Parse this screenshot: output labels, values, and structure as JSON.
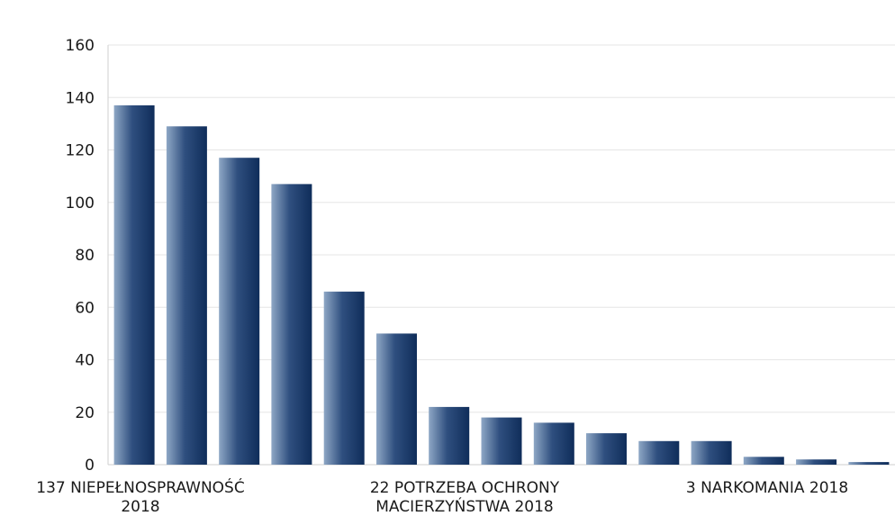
{
  "chart_data": {
    "type": "bar",
    "categories": [
      "137 NIEPEŁNOSPRAWNOŚĆ 2018",
      "",
      "",
      "",
      "",
      "",
      "22 POTRZEBA OCHRONY MACIERZYŃSTWA 2018",
      "",
      "",
      "",
      "",
      "",
      "",
      "3 NARKOMANIA 2018",
      ""
    ],
    "category_label_lines": [
      [
        "137 NIEPEŁNOSPRAWNOŚĆ",
        "2018"
      ],
      [],
      [],
      [],
      [],
      [],
      [
        "22 POTRZEBA OCHRONY",
        "MACIERZYŃSTWA 2018"
      ],
      [],
      [],
      [],
      [],
      [],
      [],
      [
        "3 NARKOMANIA 2018"
      ],
      []
    ],
    "values": [
      137,
      129,
      117,
      107,
      66,
      50,
      22,
      18,
      16,
      12,
      9,
      9,
      3,
      2,
      1
    ],
    "title": "",
    "xlabel": "",
    "ylabel": "",
    "ylim": [
      0,
      160
    ],
    "yticks": [
      0,
      20,
      40,
      60,
      80,
      100,
      120,
      140,
      160
    ],
    "grid": true,
    "legend": "none",
    "colors": {
      "bar_dark": "#0f2d5a",
      "bar_light": "#8ea7c5"
    }
  }
}
